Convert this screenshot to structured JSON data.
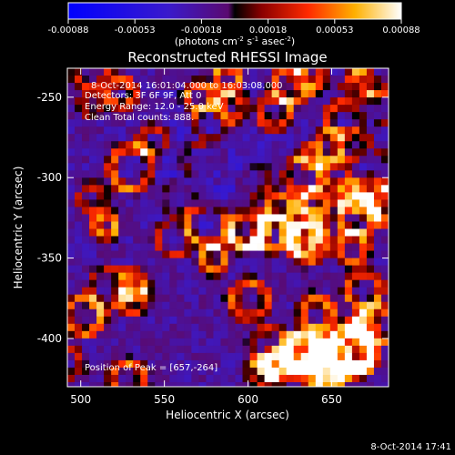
{
  "chart_data": {
    "type": "heatmap",
    "title": "Reconstructed RHESSI Image",
    "xlabel": "Heliocentric X (arcsec)",
    "ylabel": "Heliocentric Y (arcsec)",
    "xlim": [
      492,
      684
    ],
    "ylim": [
      -430,
      -232
    ],
    "x_ticks": [
      500,
      550,
      600,
      650
    ],
    "y_ticks": [
      -400,
      -350,
      -300,
      -250
    ],
    "colorbar": {
      "ticks": [
        "-0.00088",
        "-0.00053",
        "-0.00018",
        "0.00018",
        "0.00053",
        "0.00088"
      ],
      "range": [
        -0.00088,
        0.00088
      ],
      "unit_main": "(photons cm",
      "unit_sup1": "-2",
      "unit_mid": " s",
      "unit_sup2": "-1",
      "unit_mid2": " asec",
      "unit_sup3": "-2",
      "unit_end": ")"
    },
    "annotations": {
      "time_range": "8-Oct-2014 16:01:04.000 to 16:03:08.000",
      "detectors": "Detectors: 3F 6F 9F, Att 0",
      "energy": "Energy Range: 12.0 - 25.0 keV",
      "clean": "Clean     Total counts: 888.",
      "peak": "Position of Peak = [657,-264]"
    },
    "peak_position": [
      657,
      -264
    ],
    "footer_timestamp": "8-Oct-2014 17:41"
  },
  "colors": {
    "background": "#000000",
    "foreground": "#ffffff"
  }
}
